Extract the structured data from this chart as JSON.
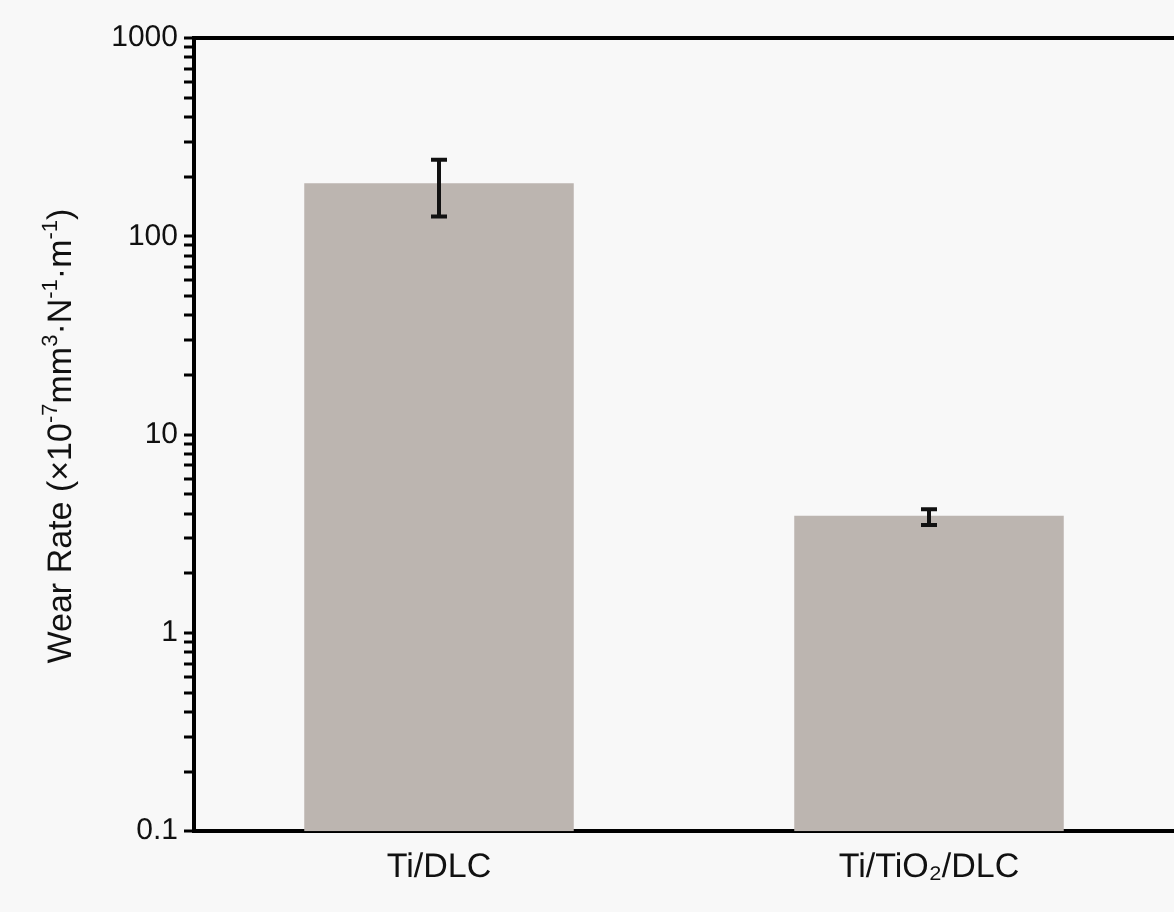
{
  "chart_data": {
    "type": "bar",
    "ylabel": "Wear Rate (×10$^{-7}$mm$^{3}$·N$^{-1}$·m$^{-1}$)",
    "categories": [
      "Ti/DLC",
      "Ti/TiO₂/DLC"
    ],
    "values": [
      185,
      3.9
    ],
    "errors": [
      [
        126,
        243
      ],
      [
        3.5,
        4.2
      ]
    ],
    "color": "#bcb5b0",
    "log": true,
    "ylim": [
      0.1,
      1000
    ],
    "yticks": [
      0.1,
      {
        "value": 0.2,
        "label": null
      },
      {
        "value": 0.3,
        "label": null
      },
      {
        "value": 0.4,
        "label": null
      },
      {
        "value": 0.5,
        "label": null
      },
      {
        "value": 0.6,
        "label": null
      },
      {
        "value": 0.7,
        "label": null
      },
      {
        "value": 0.8,
        "label": null
      },
      {
        "value": 0.9,
        "label": null
      },
      1,
      {
        "value": 2,
        "label": null
      },
      {
        "value": 3,
        "label": null
      },
      {
        "value": 4,
        "label": null
      },
      {
        "value": 5,
        "label": null
      },
      {
        "value": 6,
        "label": null
      },
      {
        "value": 7,
        "label": null
      },
      {
        "value": 8,
        "label": null
      },
      {
        "value": 9,
        "label": null
      },
      10,
      {
        "value": 20,
        "label": null
      },
      {
        "value": 30,
        "label": null
      },
      {
        "value": 40,
        "label": null
      },
      {
        "value": 50,
        "label": null
      },
      {
        "value": 60,
        "label": null
      },
      {
        "value": 70,
        "label": null
      },
      {
        "value": 80,
        "label": null
      },
      {
        "value": 90,
        "label": null
      },
      100,
      {
        "value": 200,
        "label": null
      },
      {
        "value": 300,
        "label": null
      },
      {
        "value": 400,
        "label": null
      },
      {
        "value": 500,
        "label": null
      },
      {
        "value": 600,
        "label": null
      },
      {
        "value": 700,
        "label": null
      },
      {
        "value": 800,
        "label": null
      },
      {
        "value": 900,
        "label": null
      },
      1000
    ],
    "grid": false,
    "legend": false
  }
}
